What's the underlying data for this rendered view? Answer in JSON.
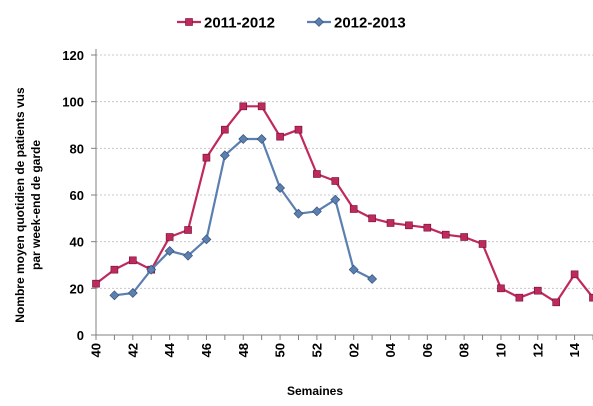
{
  "chart_data": {
    "type": "line",
    "title": "",
    "xlabel": "Semaines",
    "ylabel_lines": [
      "Nombre moyen quotidien de patients vus",
      "par week-end  de garde"
    ],
    "ylim": [
      0,
      120
    ],
    "yticks": [
      0,
      20,
      40,
      60,
      80,
      100,
      120
    ],
    "grid": true,
    "legend_position": "top",
    "x_categories": [
      "40",
      "41",
      "42",
      "43",
      "44",
      "45",
      "46",
      "47",
      "48",
      "49",
      "50",
      "51",
      "52",
      "53",
      "02",
      "03",
      "04",
      "05",
      "06",
      "07",
      "08",
      "09",
      "10",
      "11",
      "12",
      "13",
      "14",
      "15"
    ],
    "x_tick_labels": [
      "40",
      "42",
      "44",
      "46",
      "48",
      "50",
      "52",
      "02",
      "04",
      "06",
      "08",
      "10",
      "12",
      "14"
    ],
    "x_tick_indices": [
      0,
      2,
      4,
      6,
      8,
      10,
      12,
      14,
      16,
      18,
      20,
      22,
      24,
      26
    ],
    "series": [
      {
        "name": "2011-2012",
        "color": "#C0295E",
        "marker": "square",
        "values": [
          22,
          28,
          32,
          28,
          42,
          45,
          76,
          88,
          98,
          98,
          85,
          88,
          69,
          66,
          54,
          50,
          48,
          47,
          46,
          43,
          42,
          39,
          20,
          16,
          19,
          14,
          26,
          16
        ]
      },
      {
        "name": "2012-2013",
        "color": "#5A7FB0",
        "marker": "diamond",
        "values": [
          null,
          17,
          18,
          28,
          36,
          34,
          41,
          77,
          84,
          84,
          63,
          52,
          53,
          58,
          28,
          24,
          null,
          null,
          null,
          null,
          null,
          null,
          null,
          null,
          null,
          null,
          null,
          null
        ]
      }
    ]
  }
}
